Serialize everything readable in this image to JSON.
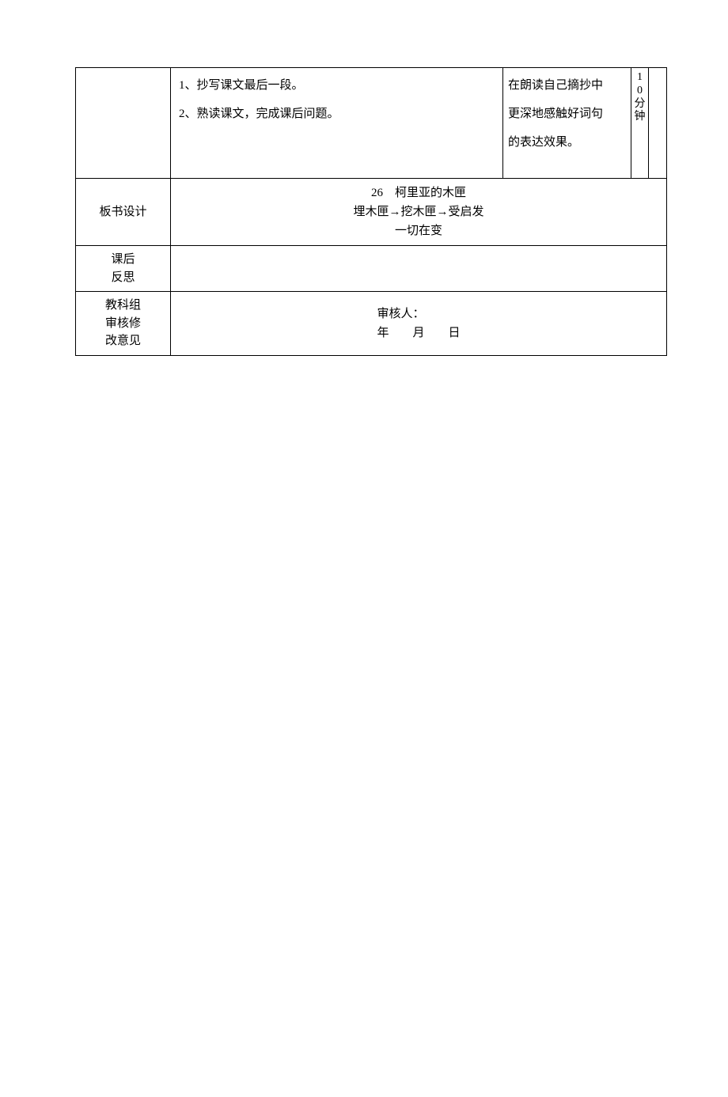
{
  "rows": {
    "r1": {
      "label": "",
      "content_line1": "1、抄写课文最后一段。",
      "content_line2": "2、熟读课文，完成课后问题。",
      "notes_line1": "在朗读自己摘抄中",
      "notes_line2": "更深地感触好词句",
      "notes_line3": "的表达效果。",
      "duration_d1": "1",
      "duration_d2": "0",
      "duration_d3": "分",
      "duration_d4": "钟"
    },
    "r2": {
      "label": "板书设计",
      "content_line1": "26　柯里亚的木匣",
      "content_line2": "埋木匣→挖木匣→受启发",
      "content_line3": "一切在变"
    },
    "r3": {
      "label_line1": "课后",
      "label_line2": "反思"
    },
    "r4": {
      "label_line1": "教科组",
      "label_line2": "审核修",
      "label_line3": "改意见",
      "content_line1": "审核人：",
      "content_line2": "年　　月　　日"
    }
  },
  "colors": {
    "border": "#000000",
    "text": "#000000",
    "background": "#ffffff"
  }
}
